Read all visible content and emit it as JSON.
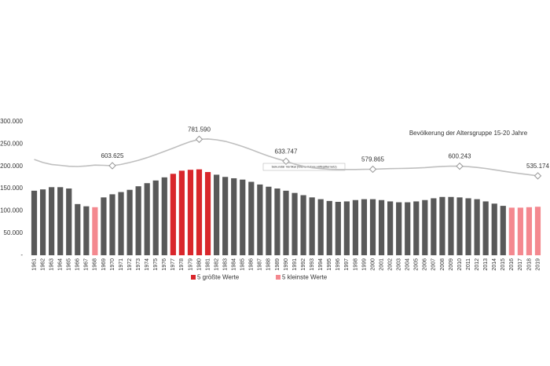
{
  "chart_data": {
    "type": "bar",
    "title": "Bevölkerung der Altersgruppe 15-20 Jahre",
    "annotation": "Sekundär Vertikal (Werte Achse Hilfsgitternetz)",
    "categories": [
      "1961",
      "1962",
      "1963",
      "1964",
      "1965",
      "1966",
      "1967",
      "1968",
      "1969",
      "1970",
      "1971",
      "1972",
      "1973",
      "1974",
      "1975",
      "1976",
      "1977",
      "1978",
      "1979",
      "1980",
      "1981",
      "1982",
      "1983",
      "1984",
      "1985",
      "1986",
      "1987",
      "1988",
      "1989",
      "1990",
      "1991",
      "1992",
      "1993",
      "1994",
      "1995",
      "1996",
      "1997",
      "1998",
      "1999",
      "2000",
      "2001",
      "2002",
      "2003",
      "2004",
      "2005",
      "2006",
      "2007",
      "2008",
      "2009",
      "2010",
      "2011",
      "2012",
      "2013",
      "2014",
      "2015",
      "2016",
      "2017",
      "2018",
      "2019"
    ],
    "values": [
      145000,
      148000,
      153000,
      153000,
      150000,
      115000,
      110000,
      108000,
      130000,
      137000,
      142000,
      147000,
      155000,
      162000,
      168000,
      175000,
      183000,
      190000,
      192000,
      193000,
      187000,
      181000,
      176000,
      173000,
      170000,
      165000,
      159000,
      154000,
      150000,
      145000,
      140000,
      135000,
      130000,
      126000,
      122000,
      120000,
      121000,
      124000,
      126000,
      126000,
      124000,
      121000,
      119000,
      119000,
      121000,
      124000,
      128000,
      131000,
      131000,
      130000,
      128000,
      126000,
      121000,
      116000,
      111000,
      107000,
      107000,
      108000,
      109000
    ],
    "colors": [
      "#595959",
      "#595959",
      "#595959",
      "#595959",
      "#595959",
      "#595959",
      "#595959",
      "#f4888f",
      "#595959",
      "#595959",
      "#595959",
      "#595959",
      "#595959",
      "#595959",
      "#595959",
      "#595959",
      "#d9262b",
      "#d9262b",
      "#d9262b",
      "#d9262b",
      "#d9262b",
      "#595959",
      "#595959",
      "#595959",
      "#595959",
      "#595959",
      "#595959",
      "#595959",
      "#595959",
      "#595959",
      "#595959",
      "#595959",
      "#595959",
      "#595959",
      "#595959",
      "#595959",
      "#595959",
      "#595959",
      "#595959",
      "#595959",
      "#595959",
      "#595959",
      "#595959",
      "#595959",
      "#595959",
      "#595959",
      "#595959",
      "#595959",
      "#595959",
      "#595959",
      "#595959",
      "#595959",
      "#595959",
      "#595959",
      "#595959",
      "#f4888f",
      "#f4888f",
      "#f4888f",
      "#f4888f"
    ],
    "legend": [
      {
        "name": "5 größte Werte",
        "color": "#d9262b"
      },
      {
        "name": "5 kleinste Werte",
        "color": "#f4888f"
      }
    ],
    "ylim": [
      0,
      300000
    ],
    "yticks": [
      {
        "value": 0,
        "label": "-"
      },
      {
        "value": 50000,
        "label": "50.000"
      },
      {
        "value": 100000,
        "label": "100.000"
      },
      {
        "value": 150000,
        "label": "150.000"
      },
      {
        "value": 200000,
        "label": "200.000"
      },
      {
        "value": 250000,
        "label": "250.000"
      },
      {
        "value": 300000,
        "label": "300.000"
      }
    ],
    "y2lim": [
      0,
      900000
    ],
    "line": {
      "axis": "y2",
      "color": "#bfbfbf",
      "values": [
        646000,
        625000,
        612000,
        606000,
        600000,
        598000,
        602000,
        608000,
        606000,
        603625,
        612000,
        625000,
        640000,
        658000,
        678000,
        700000,
        722000,
        745000,
        766000,
        781590,
        784000,
        778000,
        768000,
        752000,
        733000,
        712000,
        690000,
        668000,
        650000,
        633747,
        614000,
        600000,
        590000,
        584000,
        580000,
        578000,
        578000,
        578000,
        579000,
        579865,
        582000,
        584000,
        585000,
        586000,
        588000,
        591000,
        595000,
        599000,
        601000,
        600243,
        597000,
        592000,
        585000,
        576000,
        567000,
        558000,
        550000,
        543000,
        535174
      ],
      "value_labels": [
        null,
        null,
        null,
        null,
        null,
        null,
        null,
        null,
        null,
        "603.625",
        null,
        null,
        null,
        null,
        null,
        null,
        null,
        null,
        null,
        "781.590",
        null,
        null,
        null,
        null,
        null,
        null,
        null,
        null,
        null,
        "633.747",
        null,
        null,
        null,
        null,
        null,
        null,
        null,
        null,
        null,
        "579.865",
        null,
        null,
        null,
        null,
        null,
        null,
        null,
        null,
        null,
        "600.243",
        null,
        null,
        null,
        null,
        null,
        null,
        null,
        null,
        "535.174"
      ]
    }
  }
}
